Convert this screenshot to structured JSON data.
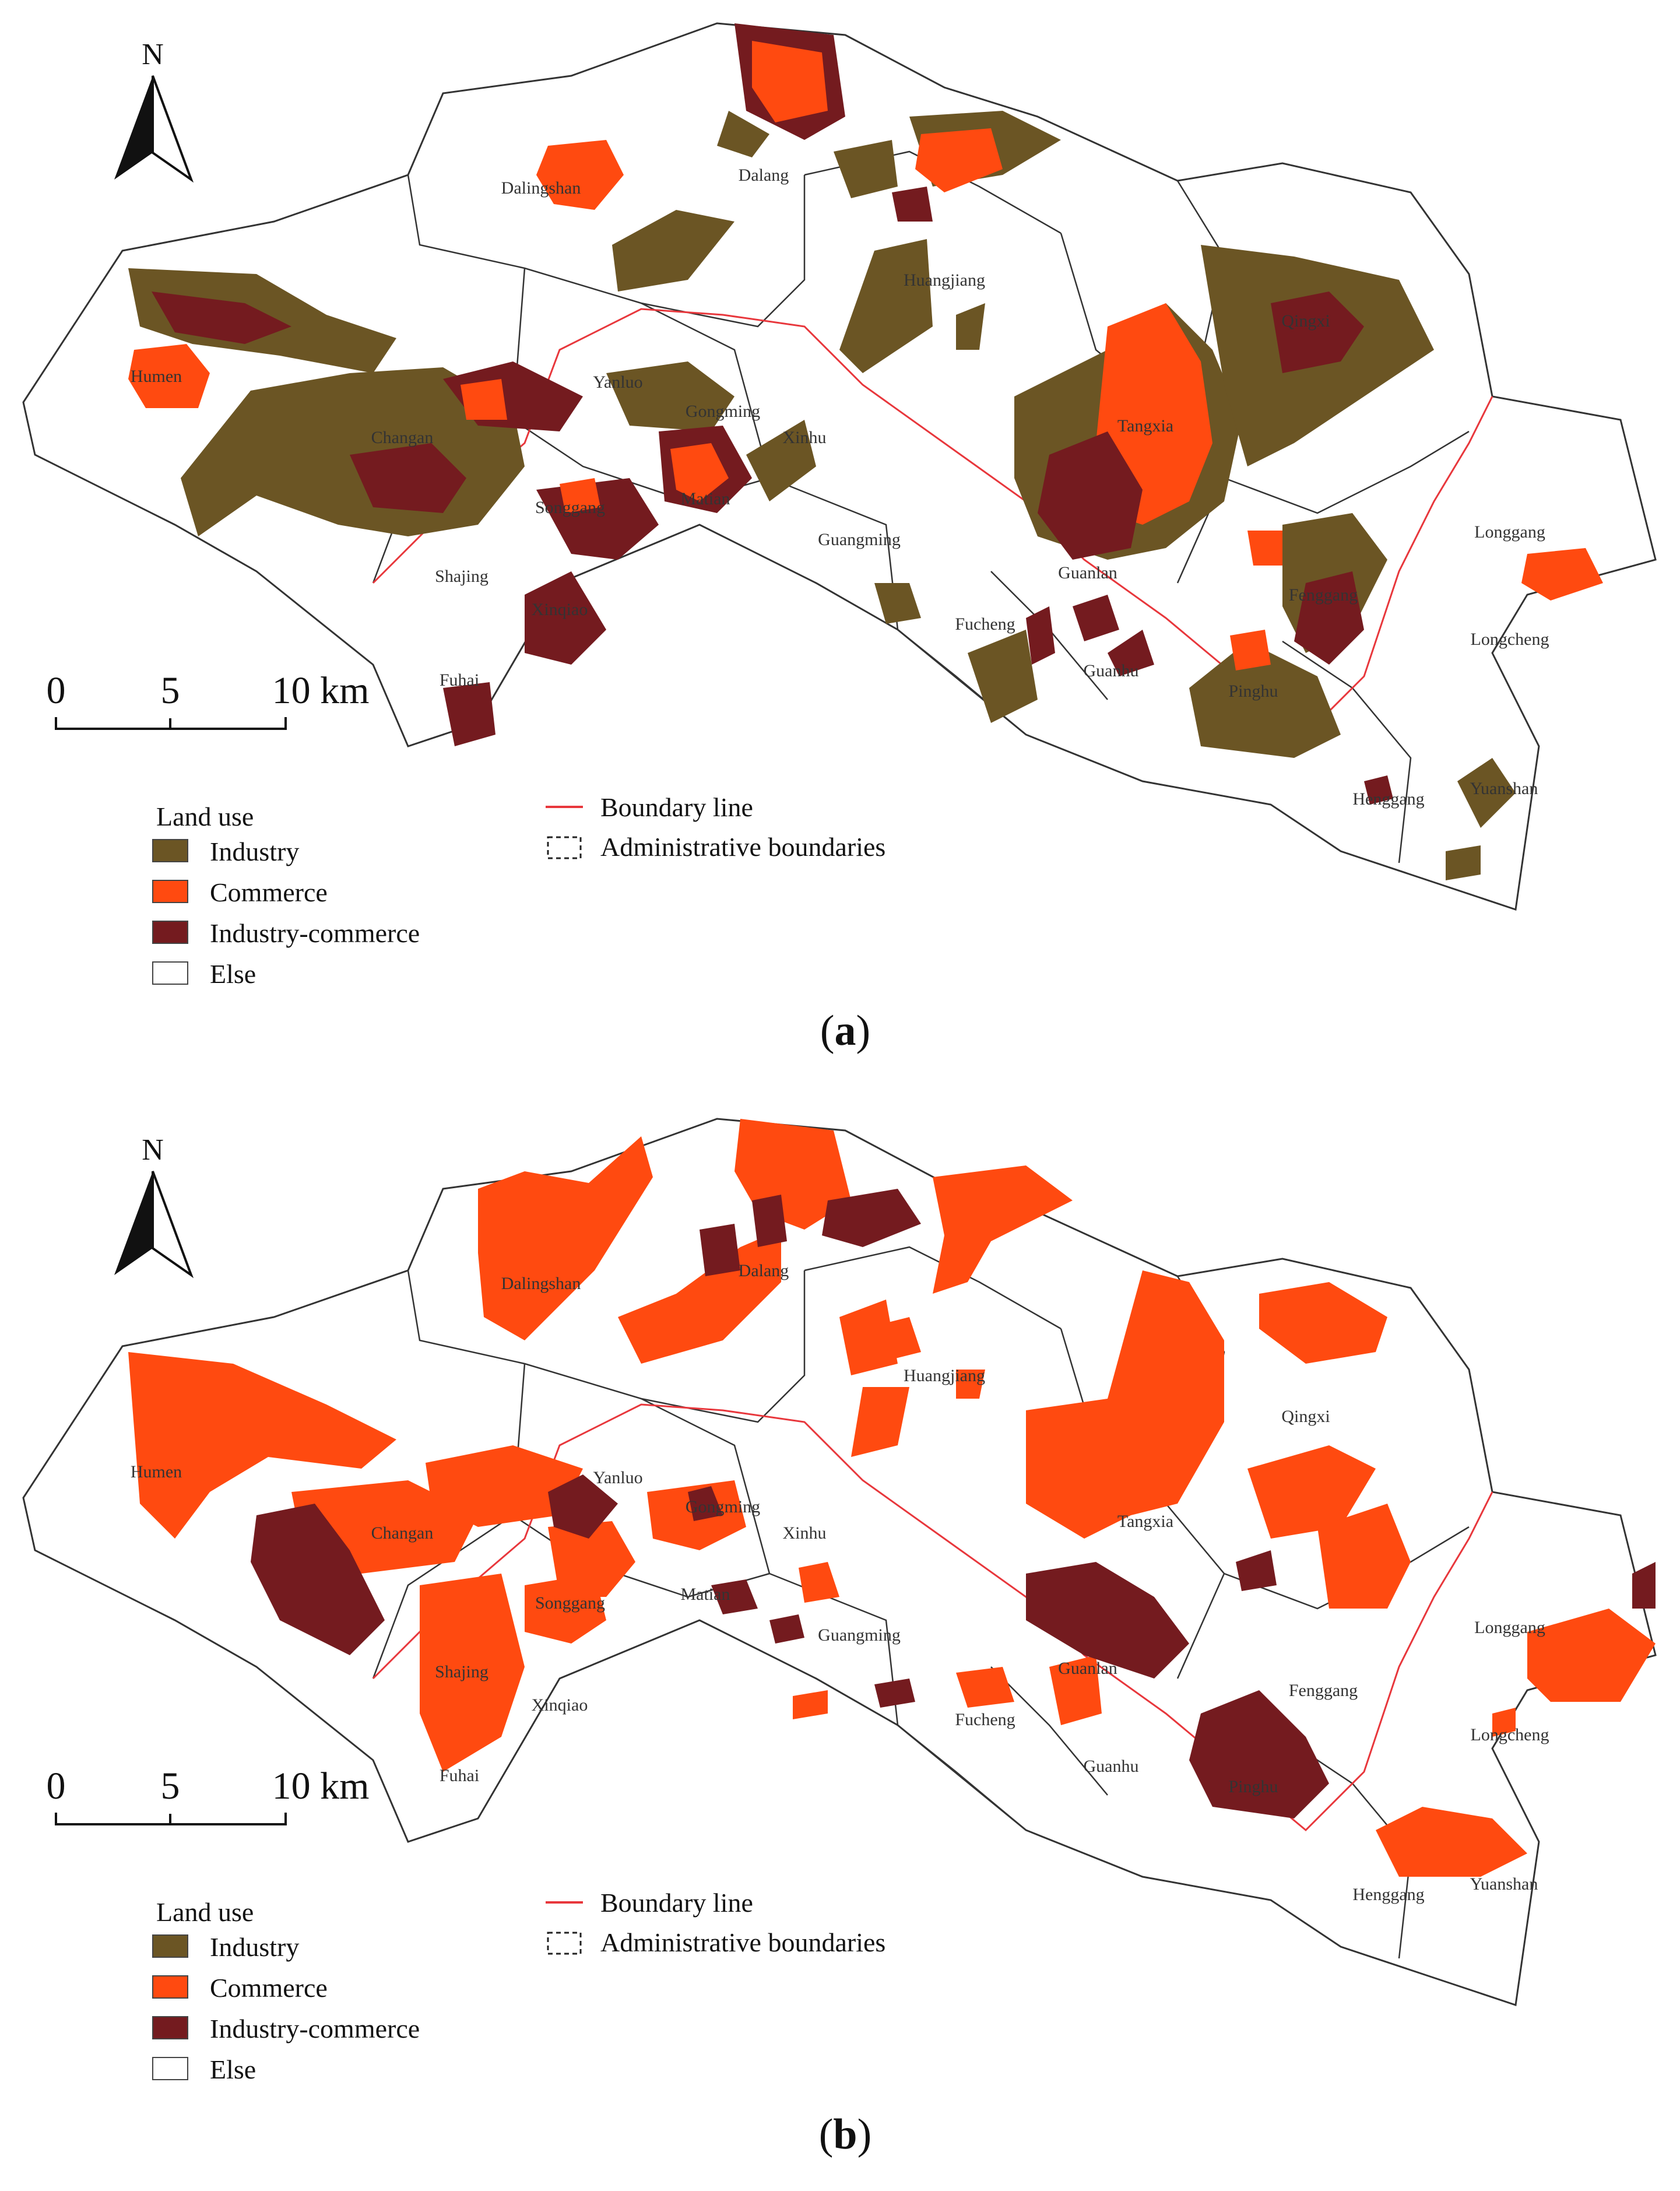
{
  "colors": {
    "industry": "#6b5524",
    "commerce": "#ff4a10",
    "industry_commerce": "#741b1f",
    "else": "#ffffff",
    "boundary_line": "#e8373c",
    "admin_boundary": "#222222"
  },
  "north_arrow": {
    "label": "N"
  },
  "scale_bar": {
    "ticks": [
      "0",
      "5",
      "10 km"
    ]
  },
  "legend_left": {
    "title": "Land use",
    "items": [
      {
        "label": "Industry",
        "color_key": "industry"
      },
      {
        "label": "Commerce",
        "color_key": "commerce"
      },
      {
        "label": "Industry-commerce",
        "color_key": "industry_commerce"
      },
      {
        "label": "Else",
        "color_key": "else"
      }
    ]
  },
  "legend_right": {
    "items": [
      {
        "label": "Boundary line",
        "symbol": "red-line"
      },
      {
        "label": "Administrative boundaries",
        "symbol": "dashed-box"
      }
    ]
  },
  "place_names": {
    "dalingshan": "Dalingshan",
    "dalang": "Dalang",
    "huangjiang": "Huangjiang",
    "qingxi": "Qingxi",
    "humen": "Humen",
    "changan": "Changan",
    "yanluo": "Yanluo",
    "gongming": "Gongming",
    "xinhu": "Xinhu",
    "matian": "Matian",
    "songgang": "Songgang",
    "shajing": "Shajing",
    "xinqiao": "Xinqiao",
    "fuhai": "Fuhai",
    "guangming": "Guangming",
    "tangxia": "Tangxia",
    "guanlan": "Guanlan",
    "fucheng": "Fucheng",
    "guanhu": "Guanhu",
    "fenggang": "Fenggang",
    "pinghu": "Pinghu",
    "longgang": "Longgang",
    "longcheng": "Longcheng",
    "henggang": "Henggang",
    "yuanshan": "Yuanshan"
  },
  "panels": [
    {
      "id": "a",
      "label": "a"
    },
    {
      "id": "b",
      "label": "b"
    }
  ]
}
